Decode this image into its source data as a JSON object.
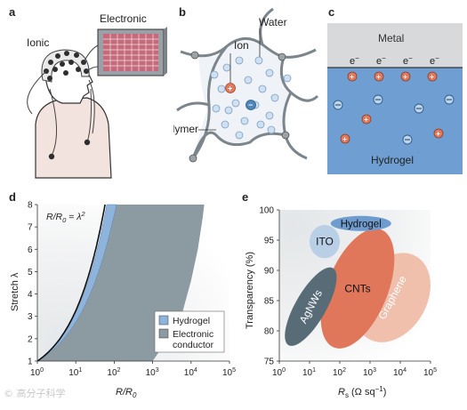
{
  "panels": {
    "a": {
      "letter": "a",
      "ionic": "Ionic",
      "electronic": "Electronic"
    },
    "b": {
      "letter": "b",
      "water": "Water",
      "ion": "Ion",
      "polymer": "Polymer"
    },
    "c": {
      "letter": "c",
      "metal": "Metal",
      "electron": "e",
      "electron_sup": "−",
      "hydrogel": "Hydrogel"
    },
    "d": {
      "letter": "d",
      "curve_label_left": "R/R",
      "curve_label_sub": "0",
      "curve_label_eq": " = λ",
      "curve_label_sup": "2",
      "legend": [
        "Hydrogel",
        "Electronic",
        "conductor"
      ],
      "colors": {
        "hydrogel": "#8fb4dc",
        "electronic": "#8c9aa1"
      }
    },
    "e": {
      "letter": "e",
      "ellipses": [
        "Hydrogel",
        "ITO",
        "CNTs",
        "AgNWs",
        "Graphene"
      ],
      "colors": {
        "hydrogel": "#6f9ccf",
        "ito": "#b9cfe6",
        "cnts": "#e0775b",
        "agnws": "#586c78",
        "graphene": "#efb9a3"
      }
    }
  },
  "chart_data": [
    {
      "type": "area",
      "title": "",
      "xlabel": "R/R0",
      "ylabel": "Stretch λ",
      "xscale": "log",
      "xlim": [
        1,
        100000
      ],
      "ylim": [
        1,
        8
      ],
      "x_ticks": [
        "10^0",
        "10^1",
        "10^2",
        "10^3",
        "10^4",
        "10^5"
      ],
      "y_ticks": [
        "1",
        "2",
        "3",
        "4",
        "5",
        "6",
        "7",
        "8"
      ],
      "series": [
        {
          "name": "Hydrogel",
          "description": "narrow band hugging R/R0 = λ²"
        },
        {
          "name": "Electronic conductor",
          "description": "broad band from R/R0≈1 to ≈2×10^4"
        }
      ],
      "annotation": "R/R0 = λ²",
      "legend_position": "lower-right"
    },
    {
      "type": "scatter",
      "title": "",
      "xlabel": "Rs (Ω sq−1)",
      "ylabel": "Transparency (%)",
      "xscale": "log",
      "xlim": [
        1,
        100000
      ],
      "ylim": [
        75,
        100
      ],
      "x_ticks": [
        "10^0",
        "10^1",
        "10^2",
        "10^3",
        "10^4",
        "10^5"
      ],
      "y_ticks": [
        "75",
        "80",
        "85",
        "90",
        "95",
        "100"
      ],
      "regions": [
        {
          "name": "Hydrogel",
          "x_range": [
            50,
            5000
          ],
          "y_range": [
            96.5,
            99
          ]
        },
        {
          "name": "ITO",
          "x_range": [
            10,
            100
          ],
          "y_range": [
            92,
            97.5
          ]
        },
        {
          "name": "CNTs",
          "x_range": [
            30,
            5000
          ],
          "y_range": [
            77,
            97
          ]
        },
        {
          "name": "AgNWs",
          "x_range": [
            3,
            40
          ],
          "y_range": [
            77,
            91
          ]
        },
        {
          "name": "Graphene",
          "x_range": [
            300,
            100000
          ],
          "y_range": [
            78,
            93
          ]
        }
      ]
    }
  ],
  "axes_text": {
    "d_ylabel": "Stretch λ",
    "d_xlabel": "R/R",
    "d_xlabel_sub": "0",
    "e_ylabel": "Transparency (%)",
    "e_xlabel_r": "R",
    "e_xlabel_sub": "s",
    "e_xlabel_rest": " (Ω sq",
    "e_xlabel_sup": "−1",
    "e_xlabel_end": ")",
    "tick_base": "10",
    "x_exps": [
      "0",
      "1",
      "2",
      "3",
      "4",
      "5"
    ],
    "d_yticks": [
      "1",
      "2",
      "3",
      "4",
      "5",
      "6",
      "7",
      "8"
    ],
    "e_yticks": [
      "75",
      "80",
      "85",
      "90",
      "95",
      "100"
    ]
  },
  "watermark": "© 高分子科学"
}
